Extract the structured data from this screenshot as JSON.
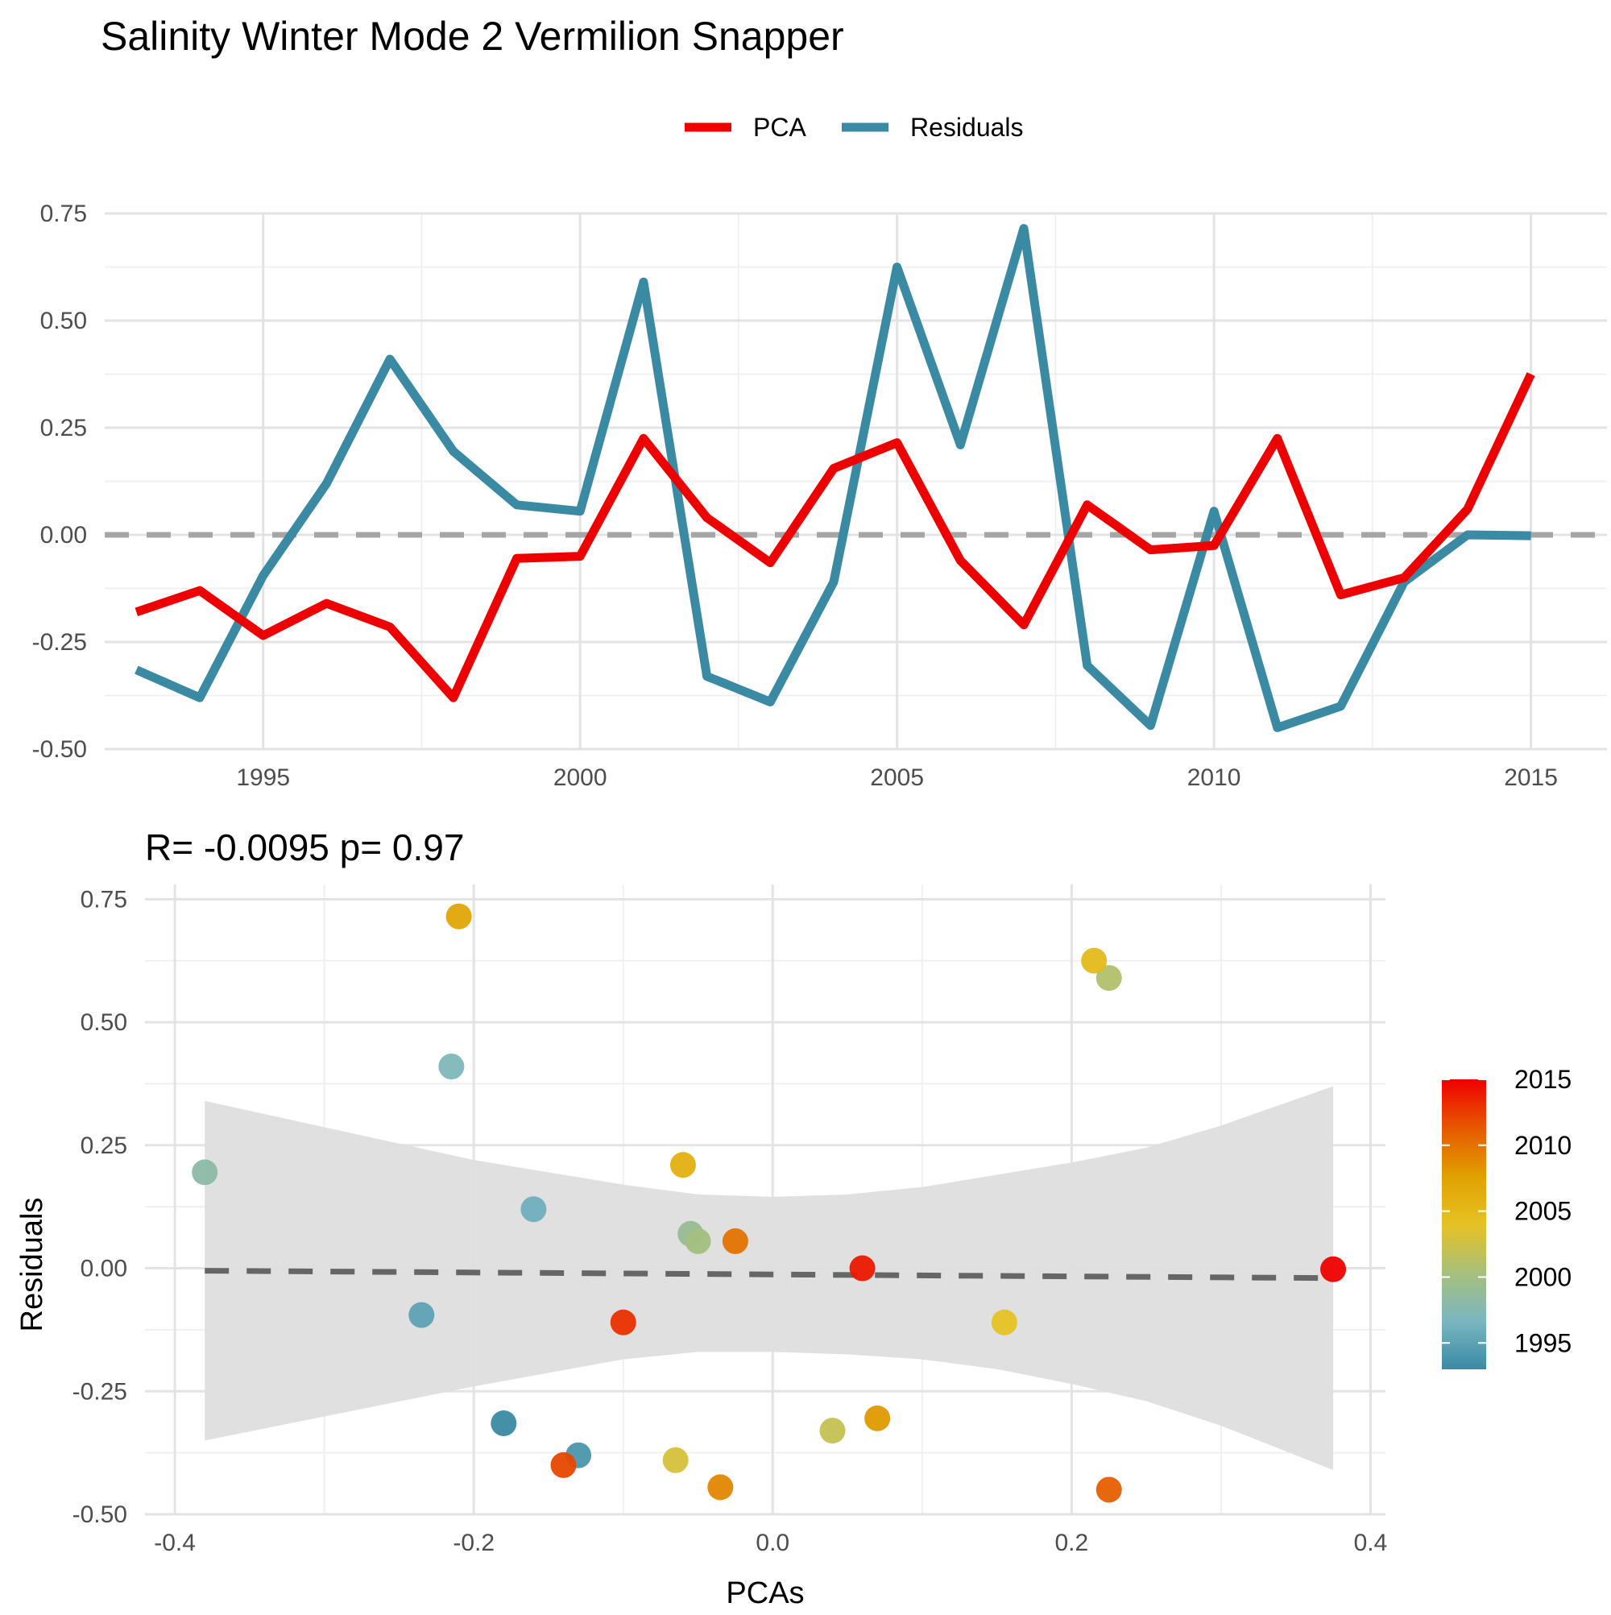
{
  "title": "Salinity Winter Mode 2 Vermilion Snapper",
  "colors": {
    "pca": "#ee0000",
    "residuals": "#3a8aa4",
    "zero_line": "#a6a6a6",
    "fit_line": "#666666",
    "ci_band": "#dedede"
  },
  "chart_data": [
    {
      "type": "line",
      "title": "",
      "xlabel": "",
      "ylabel": "",
      "legend_position": "top",
      "grid": true,
      "xlim": [
        1992.5,
        2016.2
      ],
      "ylim": [
        -0.5,
        0.75
      ],
      "x_ticks": [
        1995,
        2000,
        2005,
        2010,
        2015
      ],
      "y_ticks": [
        -0.5,
        -0.25,
        0.0,
        0.25,
        0.5,
        0.75
      ],
      "x_tick_labels": [
        "1995",
        "2000",
        "2005",
        "2010",
        "2015"
      ],
      "y_tick_labels": [
        "-0.50",
        "-0.25",
        "0.00",
        "0.25",
        "0.50",
        "0.75"
      ],
      "x": [
        1993,
        1994,
        1995,
        1996,
        1997,
        1998,
        1999,
        2000,
        2001,
        2002,
        2003,
        2004,
        2005,
        2006,
        2007,
        2008,
        2009,
        2010,
        2011,
        2012,
        2013,
        2014,
        2015
      ],
      "series": [
        {
          "name": "PCA",
          "values": [
            -0.18,
            -0.13,
            -0.235,
            -0.16,
            -0.215,
            -0.38,
            -0.055,
            -0.05,
            0.225,
            0.04,
            -0.065,
            0.155,
            0.215,
            -0.06,
            -0.21,
            0.07,
            -0.035,
            -0.025,
            0.225,
            -0.14,
            -0.1,
            0.06,
            0.375
          ]
        },
        {
          "name": "Residuals",
          "values": [
            -0.315,
            -0.38,
            -0.095,
            0.12,
            0.41,
            0.195,
            0.07,
            0.055,
            0.59,
            -0.33,
            -0.39,
            -0.11,
            0.625,
            0.21,
            0.715,
            -0.305,
            -0.445,
            0.055,
            -0.45,
            -0.4,
            -0.11,
            0.0,
            -0.002
          ]
        }
      ]
    },
    {
      "type": "scatter",
      "title": "R= -0.0095  p= 0.97",
      "xlabel": "PCAs",
      "ylabel": "Residuals",
      "grid": true,
      "legend_position": "right",
      "xlim": [
        -0.42,
        0.41
      ],
      "ylim": [
        -0.5,
        0.78
      ],
      "x_ticks": [
        -0.4,
        -0.2,
        0.0,
        0.2,
        0.4
      ],
      "y_ticks": [
        -0.5,
        -0.25,
        0.0,
        0.25,
        0.5,
        0.75
      ],
      "x_tick_labels": [
        "-0.4",
        "-0.2",
        "0.0",
        "0.2",
        "0.4"
      ],
      "y_tick_labels": [
        "-0.50",
        "-0.25",
        "0.00",
        "0.25",
        "0.50",
        "0.75"
      ],
      "points": [
        {
          "x": -0.18,
          "y": -0.315,
          "year": 1993
        },
        {
          "x": -0.13,
          "y": -0.38,
          "year": 1994
        },
        {
          "x": -0.235,
          "y": -0.095,
          "year": 1995
        },
        {
          "x": -0.16,
          "y": 0.12,
          "year": 1996
        },
        {
          "x": -0.215,
          "y": 0.41,
          "year": 1997
        },
        {
          "x": -0.38,
          "y": 0.195,
          "year": 1998
        },
        {
          "x": -0.055,
          "y": 0.07,
          "year": 1999
        },
        {
          "x": -0.05,
          "y": 0.055,
          "year": 2000
        },
        {
          "x": 0.225,
          "y": 0.59,
          "year": 2001
        },
        {
          "x": 0.04,
          "y": -0.33,
          "year": 2002
        },
        {
          "x": -0.065,
          "y": -0.39,
          "year": 2003
        },
        {
          "x": 0.155,
          "y": -0.11,
          "year": 2004
        },
        {
          "x": 0.215,
          "y": 0.625,
          "year": 2005
        },
        {
          "x": -0.06,
          "y": 0.21,
          "year": 2006
        },
        {
          "x": -0.21,
          "y": 0.715,
          "year": 2007
        },
        {
          "x": 0.07,
          "y": -0.305,
          "year": 2008
        },
        {
          "x": -0.035,
          "y": -0.445,
          "year": 2009
        },
        {
          "x": -0.025,
          "y": 0.055,
          "year": 2010
        },
        {
          "x": 0.225,
          "y": -0.45,
          "year": 2011
        },
        {
          "x": -0.14,
          "y": -0.4,
          "year": 2012
        },
        {
          "x": -0.1,
          "y": -0.11,
          "year": 2013
        },
        {
          "x": 0.06,
          "y": 0.0,
          "year": 2014
        },
        {
          "x": 0.375,
          "y": -0.002,
          "year": 2015
        }
      ],
      "fit": {
        "x": [
          -0.38,
          0.375
        ],
        "y": [
          -0.005,
          -0.02
        ]
      },
      "ci_band": {
        "x": [
          -0.38,
          -0.2,
          -0.1,
          -0.05,
          0.0,
          0.05,
          0.1,
          0.15,
          0.2,
          0.25,
          0.3,
          0.375
        ],
        "upper": [
          0.34,
          0.22,
          0.17,
          0.15,
          0.145,
          0.15,
          0.165,
          0.19,
          0.215,
          0.245,
          0.29,
          0.37
        ],
        "lower": [
          -0.35,
          -0.24,
          -0.185,
          -0.17,
          -0.17,
          -0.175,
          -0.185,
          -0.205,
          -0.235,
          -0.27,
          -0.32,
          -0.41
        ]
      },
      "colorbar": {
        "min": 1993,
        "max": 2015,
        "ticks": [
          1995,
          2000,
          2005,
          2010,
          2015
        ],
        "tick_labels": [
          "1995",
          "2000",
          "2005",
          "2010",
          "2015"
        ],
        "stops": [
          "#3a8aa4",
          "#7bb6c1",
          "#a7c07a",
          "#e6c224",
          "#dfa100",
          "#e65800",
          "#ee0000"
        ]
      }
    }
  ]
}
